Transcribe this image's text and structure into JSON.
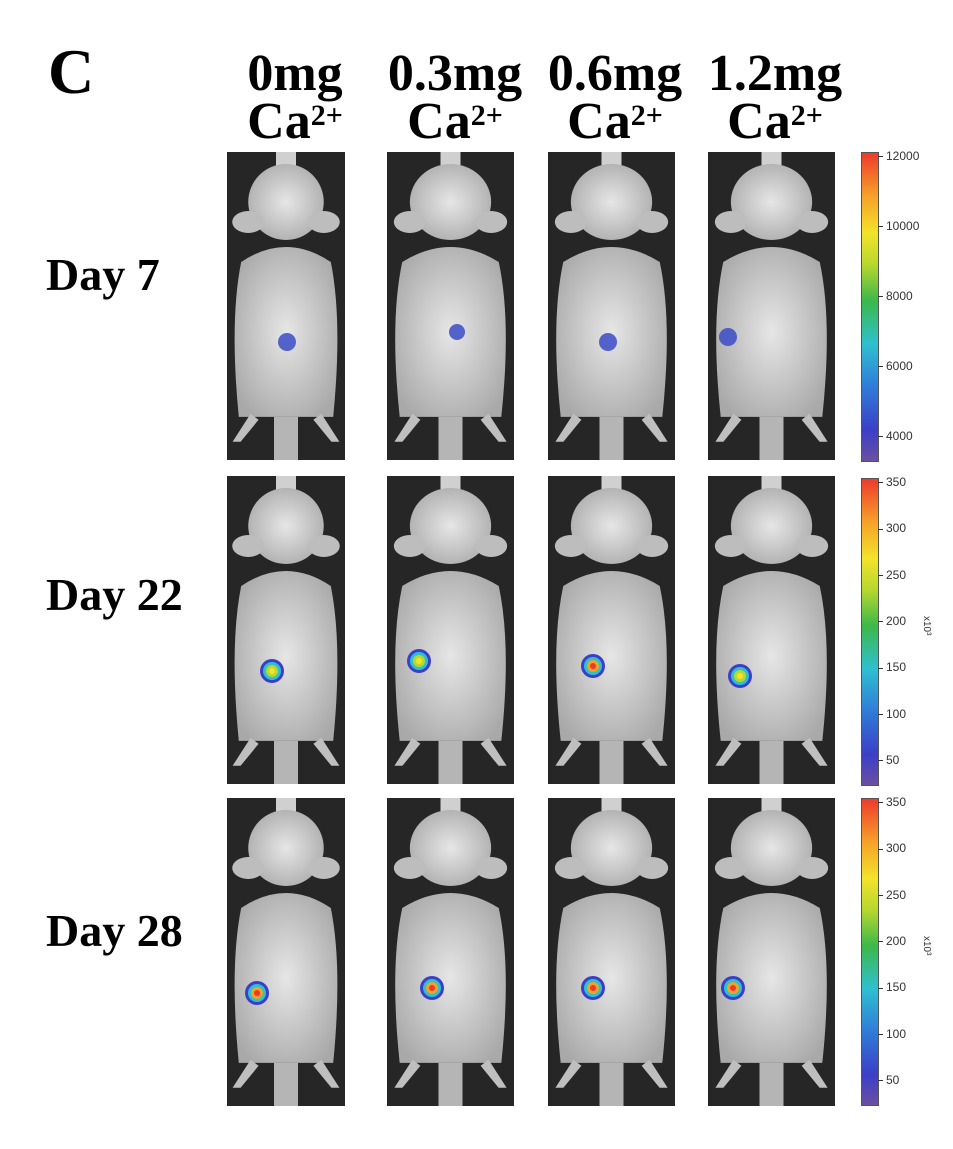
{
  "panel_letter": "C",
  "columns": [
    {
      "dose": "0mg",
      "ion": "Ca",
      "charge": "2+"
    },
    {
      "dose": "0.3mg",
      "ion": "Ca",
      "charge": "2+"
    },
    {
      "dose": "0.6mg",
      "ion": "Ca",
      "charge": "2+"
    },
    {
      "dose": "1.2mg",
      "ion": "Ca",
      "charge": "2+"
    }
  ],
  "rows": [
    {
      "label": "Day 7",
      "scale": {
        "ticks": [
          "12000",
          "10000",
          "8000",
          "6000",
          "4000"
        ],
        "unit": ""
      }
    },
    {
      "label": "Day 22",
      "scale": {
        "ticks": [
          "350",
          "300",
          "250",
          "200",
          "150",
          "100",
          "50"
        ],
        "unit": "x10³"
      }
    },
    {
      "label": "Day 28",
      "scale": {
        "ticks": [
          "350",
          "300",
          "250",
          "200",
          "150",
          "100",
          "50"
        ],
        "unit": "x10³"
      }
    }
  ]
}
